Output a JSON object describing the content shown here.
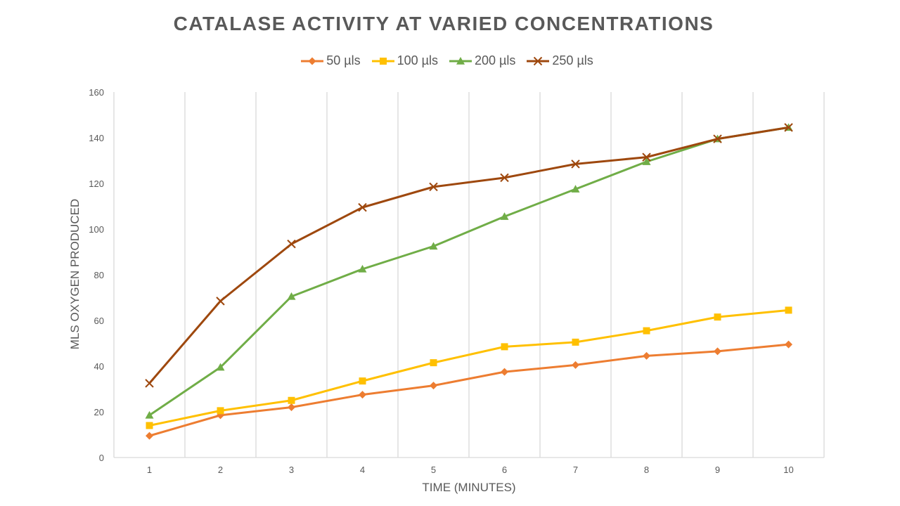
{
  "chart_data": {
    "type": "line",
    "title": "CATALASE ACTIVITY AT VARIED CONCENTRATIONS",
    "xlabel": "TIME (MINUTES)",
    "ylabel": "MLS OXYGEN PRODUCED",
    "x": [
      1,
      2,
      3,
      4,
      5,
      6,
      7,
      8,
      9,
      10
    ],
    "ylim": [
      0,
      160
    ],
    "yticks": [
      0,
      20,
      40,
      60,
      80,
      100,
      120,
      140,
      160
    ],
    "grid": "vertical",
    "legend_position": "top",
    "series": [
      {
        "name": "50 µls",
        "color": "#ED7D31",
        "marker": "diamond",
        "values": [
          9.5,
          18.5,
          22,
          27.5,
          31.5,
          37.5,
          40.5,
          44.5,
          46.5,
          49.5
        ]
      },
      {
        "name": "100 µls",
        "color": "#FFC000",
        "marker": "square",
        "values": [
          14,
          20.5,
          25,
          33.5,
          41.5,
          48.5,
          50.5,
          55.5,
          61.5,
          64.5
        ]
      },
      {
        "name": "200 µls",
        "color": "#70AD47",
        "marker": "triangle",
        "values": [
          18.5,
          39.5,
          70.5,
          82.5,
          92.5,
          105.5,
          117.5,
          129.5,
          139.5,
          144.5
        ]
      },
      {
        "name": "250 µls",
        "color": "#9E480E",
        "marker": "x",
        "values": [
          32.5,
          68.5,
          93.5,
          109.5,
          118.5,
          122.5,
          128.5,
          131.5,
          139.5,
          144.5
        ]
      }
    ]
  }
}
